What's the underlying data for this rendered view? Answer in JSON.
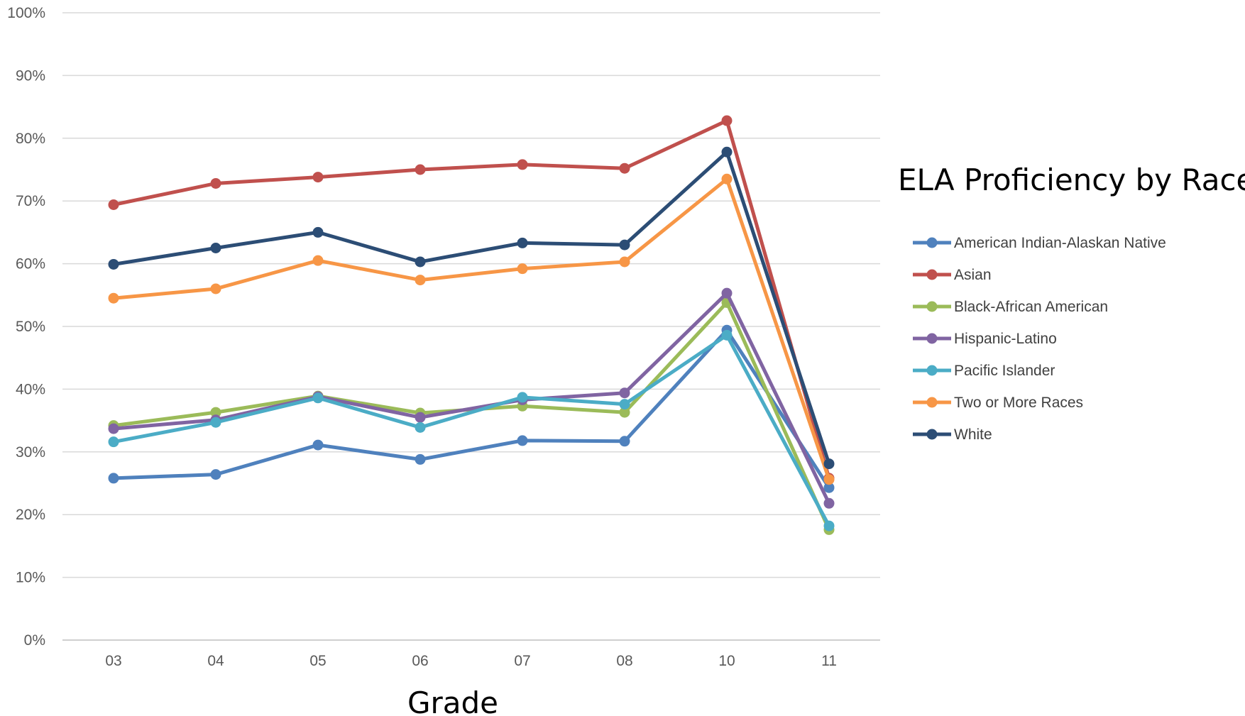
{
  "chart_data": {
    "type": "line",
    "title": "ELA Proficiency by Race",
    "xlabel": "Grade",
    "ylabel": "",
    "categories": [
      "03",
      "04",
      "05",
      "06",
      "07",
      "08",
      "10",
      "11"
    ],
    "ylim": [
      0,
      100
    ],
    "y_ticks": [
      "0%",
      "10%",
      "20%",
      "30%",
      "40%",
      "50%",
      "60%",
      "70%",
      "80%",
      "90%",
      "100%"
    ],
    "grid": true,
    "legend_position": "right",
    "series": [
      {
        "name": "American Indian-Alaskan Native",
        "color": "#4F81BD",
        "values": [
          25.8,
          26.4,
          31.1,
          28.8,
          31.8,
          31.7,
          49.4,
          24.3
        ]
      },
      {
        "name": "Asian",
        "color": "#C0504D",
        "values": [
          69.4,
          72.8,
          73.8,
          75.0,
          75.8,
          75.2,
          82.8,
          25.8
        ]
      },
      {
        "name": "Black-African American",
        "color": "#9BBB59",
        "values": [
          34.2,
          36.3,
          38.9,
          36.2,
          37.3,
          36.3,
          53.8,
          17.6
        ]
      },
      {
        "name": "Hispanic-Latino",
        "color": "#8064A2",
        "values": [
          33.7,
          35.1,
          38.8,
          35.5,
          38.3,
          39.4,
          55.3,
          21.8
        ]
      },
      {
        "name": "Pacific Islander",
        "color": "#4BACC6",
        "values": [
          31.6,
          34.7,
          38.6,
          33.9,
          38.7,
          37.6,
          48.6,
          18.2
        ]
      },
      {
        "name": "Two or More Races",
        "color": "#F79646",
        "values": [
          54.5,
          56.0,
          60.5,
          57.4,
          59.2,
          60.3,
          73.5,
          25.6
        ]
      },
      {
        "name": "White",
        "color": "#2C4D75",
        "values": [
          59.9,
          62.5,
          65.0,
          60.3,
          63.3,
          63.0,
          77.8,
          28.1
        ]
      }
    ]
  }
}
